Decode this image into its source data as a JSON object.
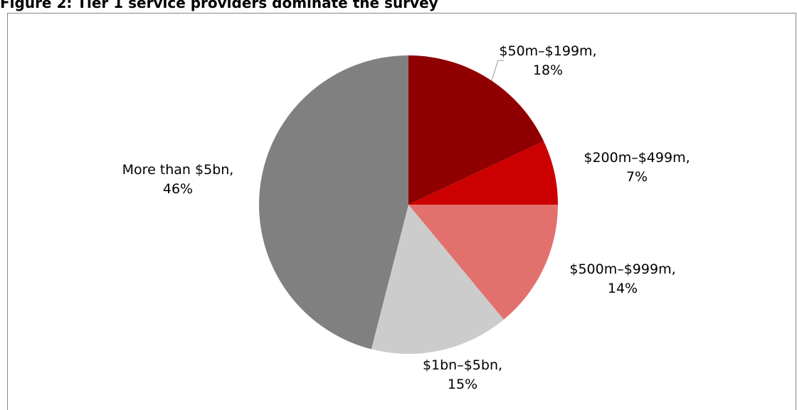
{
  "chart_data": {
    "type": "pie",
    "title": "Figure 2: Tier 1 service providers dominate the survey",
    "categories": [
      "$50m–$199m",
      "$200m–$499m",
      "$500m–$999m",
      "$1bn–$5bn",
      "More than $5bn"
    ],
    "label_separator": ",",
    "values": [
      18,
      7,
      14,
      15,
      46
    ],
    "value_labels": [
      "18%",
      "7%",
      "14%",
      "15%",
      "46%"
    ],
    "colors": [
      "#900000",
      "#cc0000",
      "#e2716e",
      "#cccccc",
      "#808080"
    ]
  }
}
